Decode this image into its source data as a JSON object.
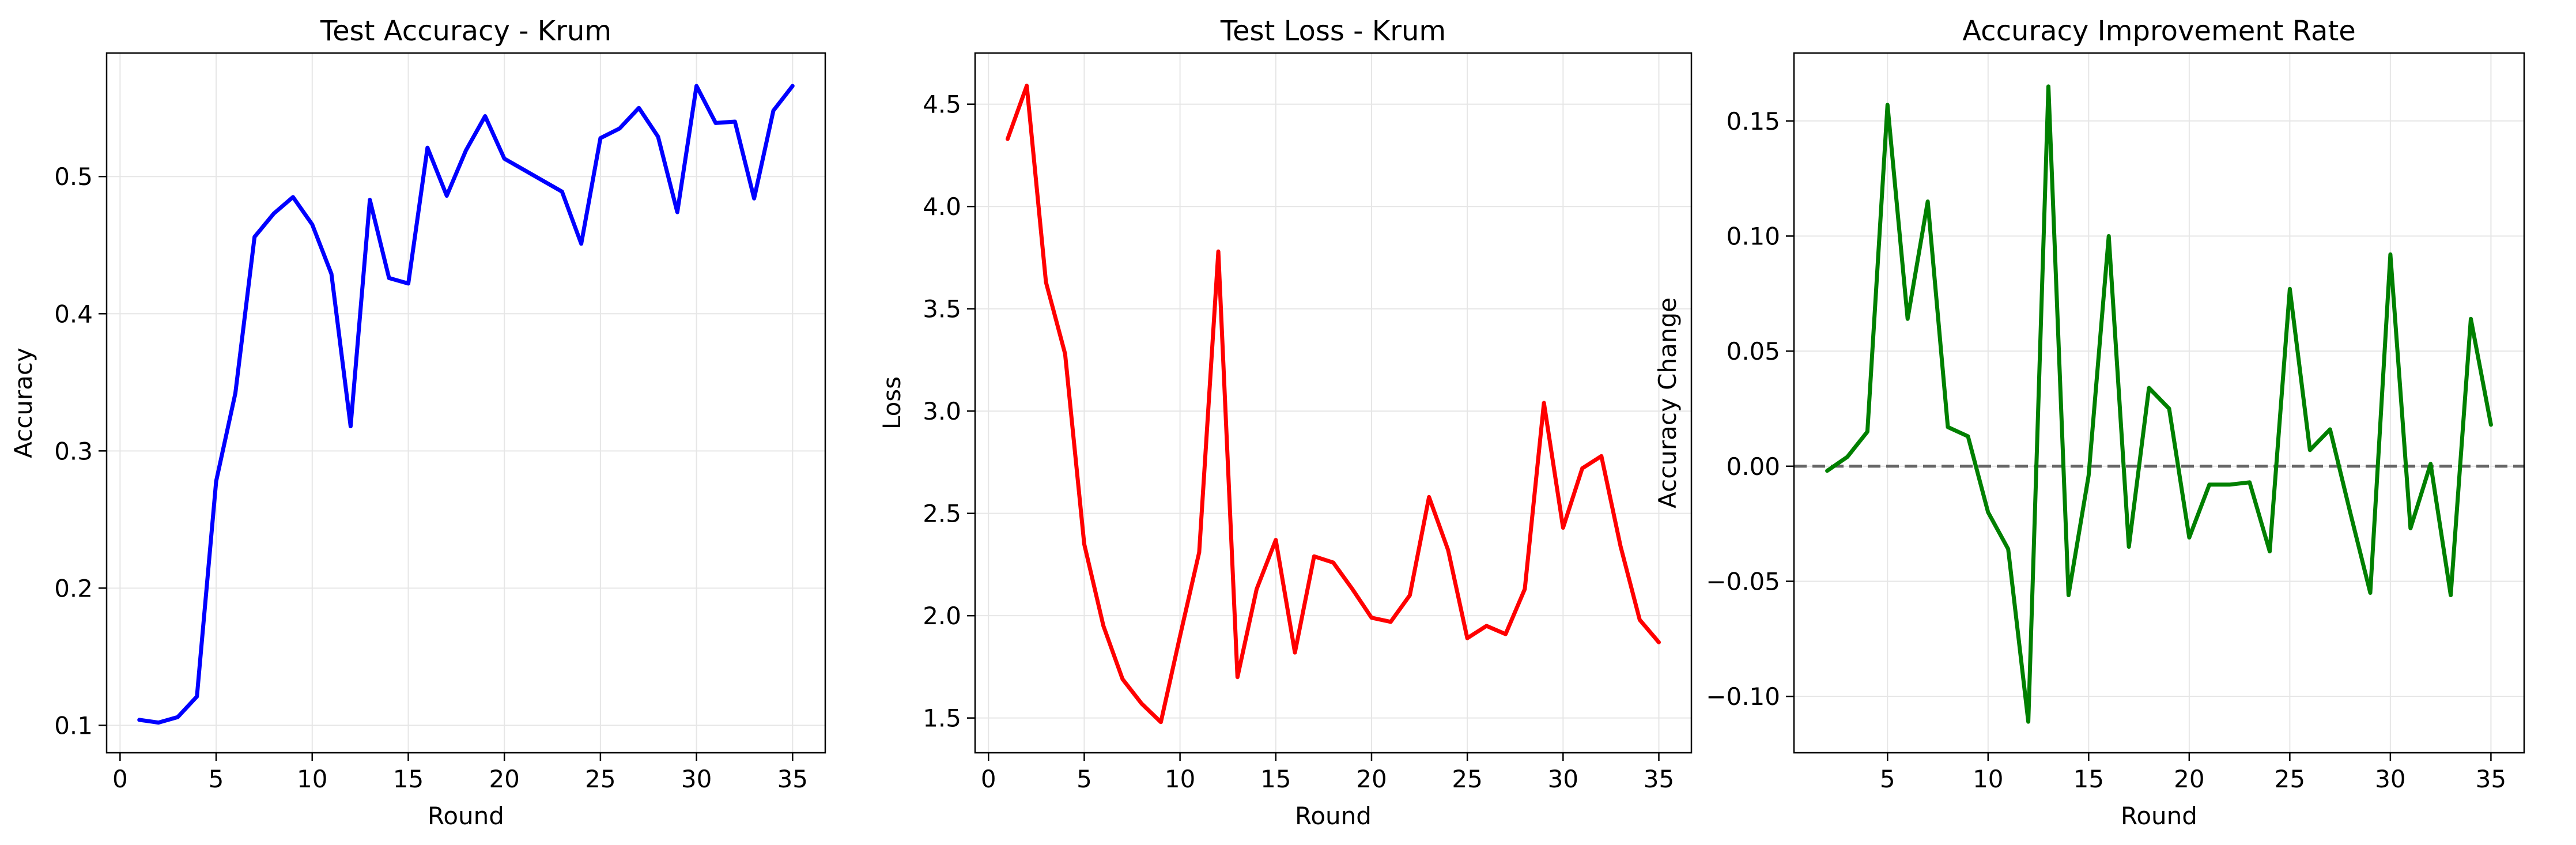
{
  "chart_data": [
    {
      "type": "line",
      "title": "Test Accuracy - Krum",
      "xlabel": "Round",
      "ylabel": "Accuracy",
      "xlim": [
        -0.7,
        36.7
      ],
      "ylim": [
        0.08,
        0.59
      ],
      "xticks": [
        0,
        5,
        10,
        15,
        20,
        25,
        30,
        35
      ],
      "yticks": [
        0.1,
        0.2,
        0.3,
        0.4,
        0.5
      ],
      "xtick_labels": [
        "0",
        "5",
        "10",
        "15",
        "20",
        "25",
        "30",
        "35"
      ],
      "ytick_labels": [
        "0.1",
        "0.2",
        "0.3",
        "0.4",
        "0.5"
      ],
      "grid": true,
      "series": [
        {
          "color": "#0000ff",
          "x": [
            1,
            2,
            3,
            4,
            5,
            6,
            7,
            8,
            9,
            10,
            11,
            12,
            13,
            14,
            15,
            16,
            17,
            18,
            19,
            20,
            21,
            22,
            23,
            24,
            25,
            26,
            27,
            28,
            29,
            30,
            31,
            32,
            33,
            34,
            35
          ],
          "y": [
            0.104,
            0.102,
            0.106,
            0.121,
            0.278,
            0.342,
            0.456,
            0.473,
            0.485,
            0.465,
            0.429,
            0.318,
            0.483,
            0.426,
            0.422,
            0.521,
            0.486,
            0.519,
            0.544,
            0.513,
            0.505,
            0.497,
            0.489,
            0.451,
            0.528,
            0.535,
            0.55,
            0.529,
            0.474,
            0.566,
            0.539,
            0.54,
            0.484,
            0.548,
            0.566
          ]
        }
      ]
    },
    {
      "type": "line",
      "title": "Test Loss - Krum",
      "xlabel": "Round",
      "ylabel": "Loss",
      "xlim": [
        -0.7,
        36.7
      ],
      "ylim": [
        1.33,
        4.75
      ],
      "xticks": [
        0,
        5,
        10,
        15,
        20,
        25,
        30,
        35
      ],
      "yticks": [
        1.5,
        2.0,
        2.5,
        3.0,
        3.5,
        4.0,
        4.5
      ],
      "xtick_labels": [
        "0",
        "5",
        "10",
        "15",
        "20",
        "25",
        "30",
        "35"
      ],
      "ytick_labels": [
        "1.5",
        "2.0",
        "2.5",
        "3.0",
        "3.5",
        "4.0",
        "4.5"
      ],
      "grid": true,
      "series": [
        {
          "color": "#ff0000",
          "x": [
            1,
            2,
            3,
            4,
            5,
            6,
            7,
            8,
            9,
            10,
            11,
            12,
            13,
            14,
            15,
            16,
            17,
            18,
            19,
            20,
            21,
            22,
            23,
            24,
            25,
            26,
            27,
            28,
            29,
            30,
            31,
            32,
            33,
            34,
            35
          ],
          "y": [
            4.33,
            4.59,
            3.63,
            3.28,
            2.35,
            1.95,
            1.69,
            1.57,
            1.48,
            1.9,
            2.31,
            3.78,
            1.7,
            2.13,
            2.37,
            1.82,
            2.29,
            2.26,
            2.13,
            1.99,
            1.97,
            2.1,
            2.58,
            2.32,
            1.89,
            1.95,
            1.91,
            2.13,
            3.04,
            2.43,
            2.72,
            2.78,
            2.34,
            1.98,
            1.87
          ]
        }
      ]
    },
    {
      "type": "line",
      "title": "Accuracy Improvement Rate",
      "xlabel": "Round",
      "ylabel": "Accuracy Change",
      "xlim": [
        0.35,
        36.65
      ],
      "ylim": [
        -0.1245,
        0.1795
      ],
      "xticks": [
        5,
        10,
        15,
        20,
        25,
        30,
        35
      ],
      "yticks": [
        -0.1,
        -0.05,
        0.0,
        0.05,
        0.1,
        0.15
      ],
      "xtick_labels": [
        "5",
        "10",
        "15",
        "20",
        "25",
        "30",
        "35"
      ],
      "ytick_labels": [
        "−0.10",
        "−0.05",
        "0.00",
        "0.05",
        "0.10",
        "0.15"
      ],
      "grid": true,
      "reference_line": {
        "y": 0,
        "style": "dashed",
        "color": "#666666"
      },
      "series": [
        {
          "color": "#008000",
          "x": [
            2,
            3,
            4,
            5,
            6,
            7,
            8,
            9,
            10,
            11,
            12,
            13,
            14,
            15,
            16,
            17,
            18,
            19,
            20,
            21,
            22,
            23,
            24,
            25,
            26,
            27,
            28,
            29,
            30,
            31,
            32,
            33,
            34,
            35
          ],
          "y": [
            -0.002,
            0.004,
            0.015,
            0.157,
            0.064,
            0.115,
            0.017,
            0.013,
            -0.02,
            -0.036,
            -0.111,
            0.165,
            -0.056,
            -0.004,
            0.1,
            -0.035,
            0.034,
            0.025,
            -0.031,
            -0.008,
            -0.008,
            -0.007,
            -0.037,
            0.077,
            0.007,
            0.016,
            -0.02,
            -0.055,
            0.092,
            -0.027,
            0.001,
            -0.056,
            0.064,
            0.018
          ]
        }
      ]
    }
  ]
}
